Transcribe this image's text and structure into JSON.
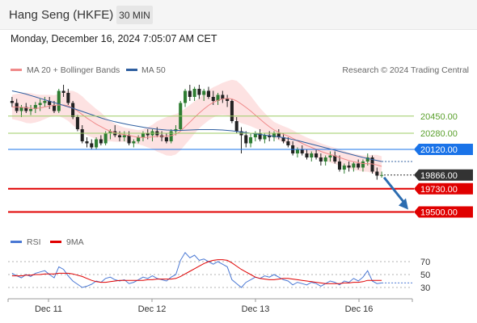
{
  "header": {
    "title": "Hang Seng (HKFE)",
    "timeframe": "30 MIN",
    "datetime": "Monday, December 16, 2024 7:05:07 AM CET"
  },
  "legend": {
    "ma20_label": "MA 20 + Bollinger Bands",
    "ma50_label": "MA 50",
    "copyright": "Research © 2024 Trading Central",
    "rsi_label": "RSI",
    "rsi_ma_label": "9MA"
  },
  "colors": {
    "ma20": "#f08a8a",
    "ma50": "#2f5fa0",
    "bollinger_fill": "#fde2e2",
    "up_candle": "#2e7d32",
    "down_candle": "#222222",
    "resistance": "#1a73e8",
    "support": "#e00000",
    "pivot": "#333333",
    "green_level": "#9ccc65",
    "rsi": "#4a78d4",
    "rsi_ma": "#e00000",
    "arrow": "#2b6cb0"
  },
  "chart_data": [
    {
      "type": "candlestick",
      "title": "Hang Seng (HKFE)",
      "timeframe": "30 MIN",
      "x_tick_labels": [
        "Dec 11",
        "Dec 12",
        "Dec 13",
        "Dec 16"
      ],
      "ylim": [
        19400,
        20800
      ],
      "candles": [
        [
          20600,
          20640,
          20540,
          20580
        ],
        [
          20580,
          20620,
          20480,
          20500
        ],
        [
          20500,
          20560,
          20440,
          20540
        ],
        [
          20540,
          20580,
          20480,
          20500
        ],
        [
          20500,
          20560,
          20460,
          20520
        ],
        [
          20520,
          20590,
          20480,
          20560
        ],
        [
          20560,
          20620,
          20500,
          20580
        ],
        [
          20580,
          20640,
          20540,
          20600
        ],
        [
          20600,
          20640,
          20520,
          20560
        ],
        [
          20560,
          20600,
          20480,
          20500
        ],
        [
          20500,
          20720,
          20480,
          20700
        ],
        [
          20700,
          20760,
          20640,
          20680
        ],
        [
          20680,
          20720,
          20560,
          20580
        ],
        [
          20580,
          20600,
          20420,
          20440
        ],
        [
          20440,
          20460,
          20300,
          20320
        ],
        [
          20320,
          20360,
          20180,
          20200
        ],
        [
          20200,
          20240,
          20140,
          20180
        ],
        [
          20180,
          20220,
          20120,
          20140
        ],
        [
          20140,
          20240,
          20120,
          20220
        ],
        [
          20220,
          20260,
          20160,
          20180
        ],
        [
          20180,
          20300,
          20160,
          20280
        ],
        [
          20280,
          20320,
          20220,
          20300
        ],
        [
          20300,
          20360,
          20240,
          20260
        ],
        [
          20260,
          20300,
          20200,
          20240
        ],
        [
          20240,
          20300,
          20200,
          20260
        ],
        [
          20260,
          20300,
          20160,
          20180
        ],
        [
          20180,
          20220,
          20140,
          20200
        ],
        [
          20200,
          20260,
          20180,
          20240
        ],
        [
          20240,
          20300,
          20200,
          20280
        ],
        [
          20280,
          20320,
          20220,
          20260
        ],
        [
          20260,
          20320,
          20200,
          20300
        ],
        [
          20300,
          20340,
          20240,
          20260
        ],
        [
          20260,
          20300,
          20200,
          20240
        ],
        [
          20240,
          20280,
          20180,
          20200
        ],
        [
          20200,
          20320,
          20180,
          20300
        ],
        [
          20300,
          20360,
          20260,
          20320
        ],
        [
          20320,
          20600,
          20300,
          20580
        ],
        [
          20580,
          20720,
          20540,
          20700
        ],
        [
          20700,
          20760,
          20600,
          20640
        ],
        [
          20640,
          20740,
          20600,
          20720
        ],
        [
          20720,
          20760,
          20620,
          20660
        ],
        [
          20660,
          20720,
          20600,
          20700
        ],
        [
          20700,
          20740,
          20620,
          20640
        ],
        [
          20640,
          20700,
          20560,
          20600
        ],
        [
          20600,
          20680,
          20560,
          20660
        ],
        [
          20660,
          20700,
          20580,
          20620
        ],
        [
          20620,
          20660,
          20540,
          20600
        ],
        [
          20600,
          20620,
          20380,
          20400
        ],
        [
          20400,
          20440,
          20280,
          20300
        ],
        [
          20300,
          20340,
          20080,
          20260
        ],
        [
          20260,
          20300,
          20140,
          20180
        ],
        [
          20180,
          20280,
          20140,
          20240
        ],
        [
          20240,
          20300,
          20200,
          20280
        ],
        [
          20280,
          20320,
          20200,
          20220
        ],
        [
          20220,
          20280,
          20180,
          20260
        ],
        [
          20260,
          20300,
          20200,
          20240
        ],
        [
          20240,
          20300,
          20200,
          20280
        ],
        [
          20280,
          20320,
          20220,
          20240
        ],
        [
          20240,
          20280,
          20180,
          20200
        ],
        [
          20200,
          20240,
          20140,
          20160
        ],
        [
          20160,
          20200,
          20060,
          20080
        ],
        [
          20080,
          20140,
          20040,
          20120
        ],
        [
          20120,
          20160,
          20060,
          20080
        ],
        [
          20080,
          20120,
          20020,
          20040
        ],
        [
          20040,
          20100,
          20000,
          20080
        ],
        [
          20080,
          20120,
          20020,
          20040
        ],
        [
          20040,
          20080,
          19960,
          20000
        ],
        [
          20000,
          20060,
          19960,
          20040
        ],
        [
          20040,
          20100,
          20000,
          20060
        ],
        [
          20060,
          20100,
          19980,
          20000
        ],
        [
          20000,
          20060,
          19900,
          19920
        ],
        [
          19920,
          19980,
          19880,
          19960
        ],
        [
          19960,
          20000,
          19900,
          19940
        ],
        [
          19940,
          20000,
          19900,
          19980
        ],
        [
          19980,
          20020,
          19920,
          19940
        ],
        [
          19940,
          20020,
          19900,
          20000
        ],
        [
          20000,
          20080,
          19960,
          20040
        ],
        [
          20040,
          20060,
          19880,
          19900
        ],
        [
          19900,
          19940,
          19820,
          19860
        ],
        [
          19860,
          19900,
          19840,
          19866
        ]
      ],
      "ma20": [
        20540,
        20540,
        20538,
        20532,
        20528,
        20526,
        20530,
        20540,
        20550,
        20556,
        20560,
        20560,
        20552,
        20530,
        20500,
        20466,
        20430,
        20400,
        20370,
        20346,
        20320,
        20300,
        20286,
        20274,
        20266,
        20258,
        20248,
        20240,
        20238,
        20240,
        20244,
        20248,
        20250,
        20250,
        20256,
        20270,
        20300,
        20346,
        20390,
        20436,
        20480,
        20520,
        20556,
        20586,
        20606,
        20620,
        20626,
        20620,
        20600,
        20570,
        20536,
        20500,
        20460,
        20420,
        20380,
        20344,
        20312,
        20290,
        20270,
        20252,
        20230,
        20204,
        20180,
        20158,
        20140,
        20120,
        20100,
        20084,
        20070,
        20056,
        20040,
        20024,
        20010,
        19998,
        19988,
        19980,
        19978,
        19976,
        19966,
        19952
      ],
      "ma50": [
        20700,
        20690,
        20680,
        20668,
        20654,
        20640,
        20626,
        20612,
        20598,
        20584,
        20570,
        20556,
        20542,
        20528,
        20512,
        20496,
        20480,
        20464,
        20448,
        20432,
        20418,
        20406,
        20394,
        20384,
        20374,
        20364,
        20356,
        20348,
        20340,
        20332,
        20326,
        20320,
        20316,
        20312,
        20310,
        20308,
        20308,
        20310,
        20312,
        20314,
        20316,
        20316,
        20316,
        20316,
        20314,
        20312,
        20308,
        20304,
        20298,
        20292,
        20286,
        20280,
        20274,
        20268,
        20262,
        20256,
        20250,
        20244,
        20236,
        20228,
        20218,
        20208,
        20196,
        20184,
        20172,
        20160,
        20148,
        20136,
        20124,
        20112,
        20100,
        20088,
        20076,
        20064,
        20052,
        20040,
        20030,
        20020,
        20010,
        20000
      ],
      "bollinger_half_width": [
        120,
        130,
        140,
        150,
        150,
        140,
        130,
        120,
        110,
        100,
        110,
        130,
        150,
        170,
        180,
        180,
        170,
        160,
        150,
        140,
        120,
        100,
        90,
        80,
        70,
        70,
        70,
        70,
        80,
        100,
        120,
        150,
        170,
        190,
        200,
        200,
        190,
        180,
        170,
        160,
        150,
        150,
        150,
        150,
        150,
        160,
        170,
        190,
        200,
        190,
        170,
        150,
        130,
        110,
        100,
        90,
        80,
        80,
        80,
        80,
        80,
        80,
        80,
        80,
        80,
        80,
        80,
        80,
        80,
        80,
        80,
        80,
        80,
        80,
        80,
        80,
        80,
        90,
        100,
        100
      ],
      "levels": [
        {
          "label": "20450.00",
          "value": 20450,
          "kind": "minor-resistance"
        },
        {
          "label": "20280.00",
          "value": 20280,
          "kind": "minor-resistance"
        },
        {
          "label": "20120.00",
          "value": 20120,
          "kind": "resistance"
        },
        {
          "label": "19866.00",
          "value": 19866,
          "kind": "pivot"
        },
        {
          "label": "19730.00",
          "value": 19730,
          "kind": "support"
        },
        {
          "label": "19500.00",
          "value": 19500,
          "kind": "support"
        }
      ],
      "target": 19500
    },
    {
      "type": "line",
      "series": [
        {
          "name": "RSI",
          "values": [
            52,
            48,
            45,
            50,
            47,
            52,
            54,
            56,
            50,
            45,
            62,
            58,
            48,
            40,
            35,
            30,
            32,
            35,
            40,
            38,
            44,
            46,
            42,
            40,
            42,
            36,
            38,
            42,
            46,
            44,
            48,
            44,
            42,
            40,
            46,
            50,
            72,
            84,
            76,
            80,
            72,
            74,
            70,
            66,
            70,
            66,
            62,
            42,
            36,
            30,
            38,
            42,
            46,
            44,
            48,
            46,
            50,
            46,
            42,
            40,
            34,
            38,
            36,
            34,
            38,
            36,
            32,
            36,
            40,
            38,
            34,
            40,
            38,
            44,
            40,
            46,
            56,
            40,
            36,
            37
          ]
        },
        {
          "name": "9MA",
          "values": [
            48,
            48,
            48,
            49,
            49,
            50,
            50,
            51,
            51,
            51,
            52,
            52,
            52,
            51,
            49,
            47,
            44,
            41,
            39,
            38,
            38,
            39,
            40,
            41,
            41,
            41,
            41,
            41,
            41,
            42,
            42,
            43,
            43,
            43,
            43,
            44,
            47,
            51,
            55,
            59,
            63,
            67,
            70,
            72,
            73,
            73,
            72,
            68,
            63,
            58,
            54,
            50,
            46,
            44,
            43,
            42,
            42,
            43,
            44,
            44,
            43,
            42,
            41,
            40,
            39,
            38,
            37,
            36,
            36,
            36,
            36,
            37,
            37,
            38,
            38,
            39,
            41,
            41,
            41,
            41
          ]
        }
      ],
      "yticks": [
        70,
        50,
        30
      ],
      "ylim": [
        15,
        85
      ]
    }
  ]
}
